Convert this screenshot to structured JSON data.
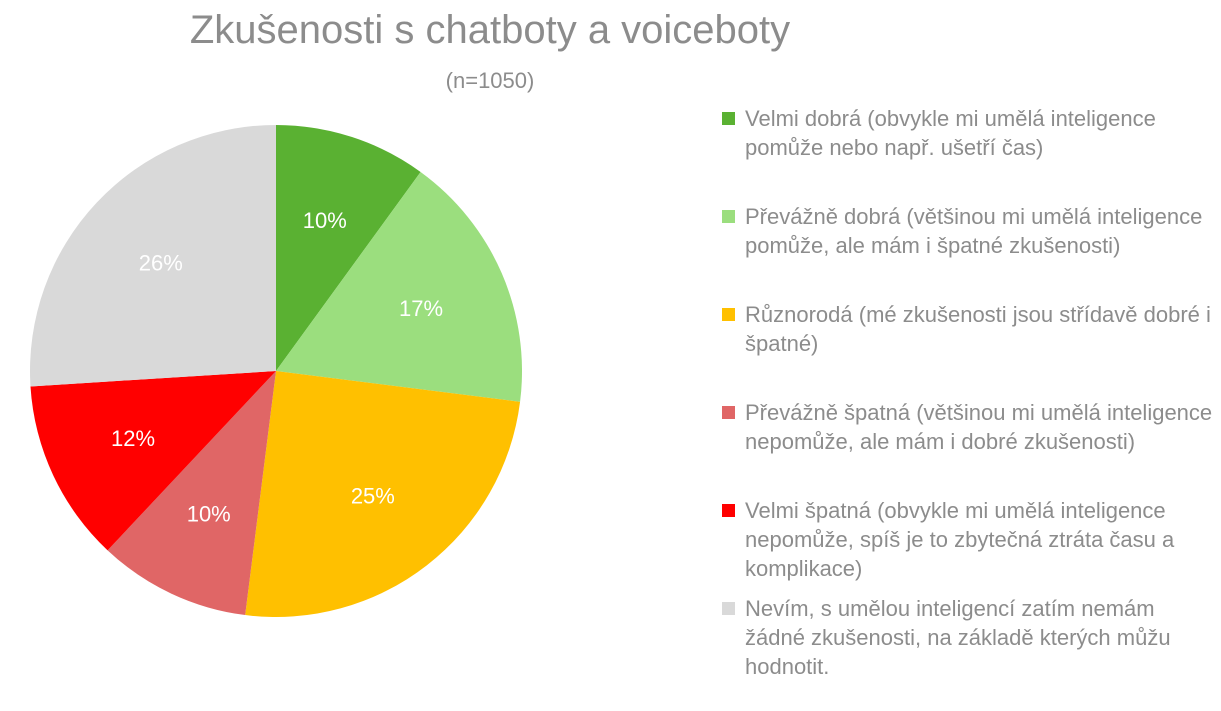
{
  "chart_data": {
    "type": "pie",
    "title": "Zkušenosti s chatboty a voiceboty",
    "subtitle": "(n=1050)",
    "legend_position": "right",
    "slices": [
      {
        "label": "Velmi dobrá (obvykle mi umělá inteligence pomůže nebo např. ušetří čas)",
        "value": 10,
        "value_label": "10%",
        "color": "#5ab132"
      },
      {
        "label": "Převážně dobrá (většinou mi umělá inteligence pomůže, ale mám i špatné zkušenosti)",
        "value": 17,
        "value_label": "17%",
        "color": "#9bde7e"
      },
      {
        "label": "Různorodá (mé zkušenosti jsou střídavě dobré i špatné)",
        "value": 25,
        "value_label": "25%",
        "color": "#ffc000"
      },
      {
        "label": "Převážně špatná (většinou mi umělá inteligence nepomůže, ale mám i dobré zkušenosti)",
        "value": 10,
        "value_label": "10%",
        "color": "#e06666"
      },
      {
        "label": "Velmi špatná (obvykle mi umělá inteligence nepomůže, spíš je to zbytečná ztráta času a komplikace)",
        "value": 12,
        "value_label": "12%",
        "color": "#ff0000"
      },
      {
        "label": "Nevím, s umělou inteligencí zatím nemám žádné zkušenosti, na základě kterých můžu hodnotit.",
        "value": 26,
        "value_label": "26%",
        "color": "#d9d9d9"
      }
    ]
  }
}
